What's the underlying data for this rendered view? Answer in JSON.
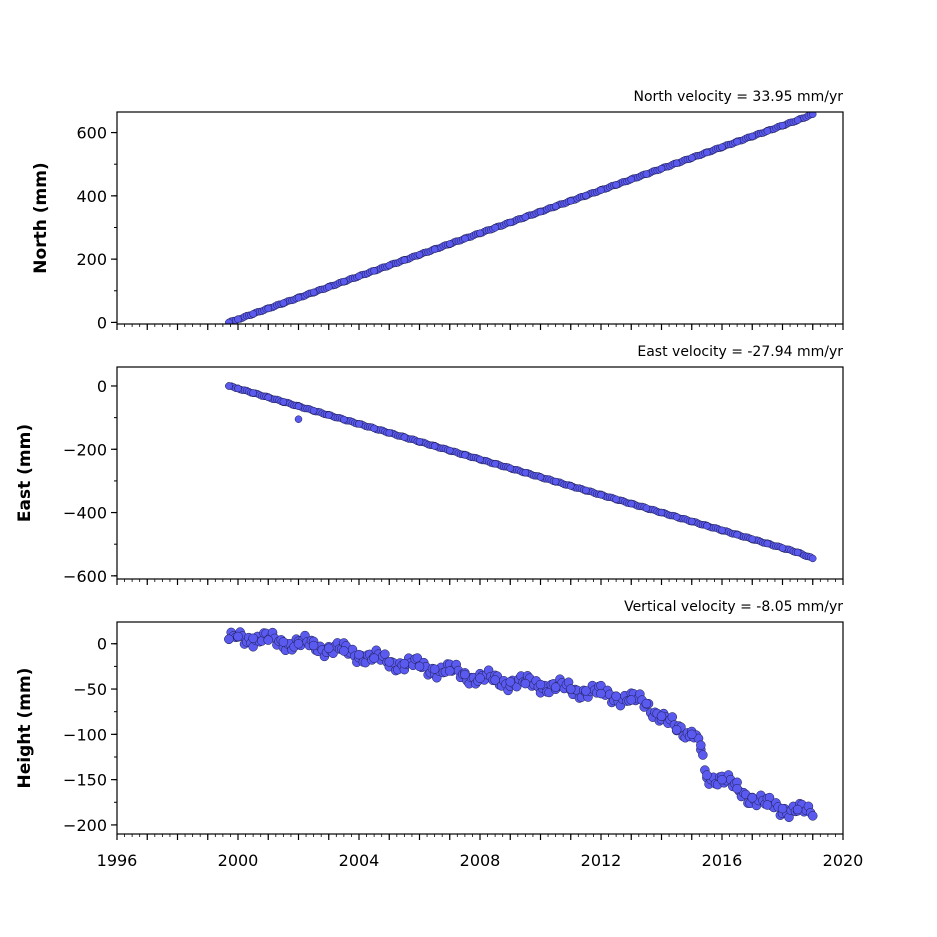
{
  "chart_data": [
    {
      "type": "scatter",
      "title": "North velocity = 33.95 mm/yr",
      "ylabel": "North (mm)",
      "xlim": [
        1996,
        2020
      ],
      "ylim": [
        -5,
        665
      ],
      "yticks": [
        0,
        200,
        400,
        600
      ],
      "ytick_labels": [
        "0",
        "200",
        "400",
        "600"
      ],
      "point_color": "#5a5af0",
      "edge_color": "#1a1a4a",
      "series": [
        {
          "x": [
            1999.7,
            2000.0,
            2000.5,
            2001.0,
            2001.5,
            2002.0,
            2002.5,
            2003.0,
            2003.5,
            2004.0,
            2004.5,
            2005.0,
            2005.5,
            2006.0,
            2006.5,
            2007.0,
            2007.5,
            2008.0,
            2008.5,
            2009.0,
            2009.5,
            2010.0,
            2010.5,
            2011.0,
            2011.5,
            2012.0,
            2012.5,
            2013.0,
            2013.5,
            2014.0,
            2014.5,
            2015.0,
            2015.5,
            2016.0,
            2016.5,
            2017.0,
            2017.5,
            2018.0,
            2018.5,
            2019.0
          ],
          "y": [
            0,
            10,
            27,
            44,
            61,
            78,
            95,
            112,
            129,
            146,
            163,
            180,
            197,
            214,
            231,
            248,
            265,
            282,
            299,
            316,
            333,
            350,
            367,
            384,
            401,
            418,
            435,
            452,
            469,
            486,
            503,
            520,
            537,
            554,
            571,
            588,
            605,
            622,
            639,
            658
          ]
        }
      ]
    },
    {
      "type": "scatter",
      "title": "East velocity = -27.94 mm/yr",
      "ylabel": "East (mm)",
      "xlim": [
        1996,
        2020
      ],
      "ylim": [
        -610,
        60
      ],
      "yticks": [
        0,
        -200,
        -400,
        -600
      ],
      "ytick_labels": [
        "0",
        "−200",
        "−400",
        "−600"
      ],
      "point_color": "#5a5af0",
      "edge_color": "#1a1a4a",
      "series": [
        {
          "x": [
            1999.7,
            2000.0,
            2000.5,
            2001.0,
            2001.5,
            2002.0,
            2002.5,
            2003.0,
            2003.5,
            2004.0,
            2004.5,
            2005.0,
            2005.5,
            2006.0,
            2006.5,
            2007.0,
            2007.5,
            2008.0,
            2008.5,
            2009.0,
            2009.5,
            2010.0,
            2010.5,
            2011.0,
            2011.5,
            2012.0,
            2012.5,
            2013.0,
            2013.5,
            2014.0,
            2014.5,
            2015.0,
            2015.5,
            2016.0,
            2016.5,
            2017.0,
            2017.5,
            2018.0,
            2018.5,
            2019.0,
            2002.0
          ],
          "y": [
            0,
            -8,
            -22,
            -36,
            -50,
            -64,
            -78,
            -92,
            -106,
            -120,
            -134,
            -148,
            -162,
            -176,
            -190,
            -204,
            -218,
            -232,
            -246,
            -260,
            -274,
            -288,
            -302,
            -316,
            -330,
            -344,
            -358,
            -372,
            -386,
            -400,
            -414,
            -428,
            -442,
            -456,
            -470,
            -484,
            -498,
            -512,
            -526,
            -545,
            -105
          ]
        }
      ]
    },
    {
      "type": "scatter",
      "title": "Vertical velocity = -8.05 mm/yr",
      "ylabel": "Height (mm)",
      "xlabel": "",
      "xlim": [
        1996,
        2020
      ],
      "ylim": [
        -210,
        24
      ],
      "yticks": [
        0,
        -50,
        -100,
        -150,
        -200
      ],
      "ytick_labels": [
        "0",
        "−50",
        "−100",
        "−150",
        "−200"
      ],
      "point_color": "#5a5af0",
      "edge_color": "#1a1a4a",
      "series": [
        {
          "x": [
            1999.7,
            2000.0,
            2000.5,
            2001.0,
            2001.5,
            2002.0,
            2002.5,
            2003.0,
            2003.5,
            2004.0,
            2004.5,
            2005.0,
            2005.5,
            2006.0,
            2006.5,
            2007.0,
            2007.5,
            2008.0,
            2008.5,
            2009.0,
            2009.5,
            2010.0,
            2010.5,
            2011.0,
            2011.5,
            2012.0,
            2012.5,
            2013.0,
            2013.5,
            2014.0,
            2014.5,
            2015.0,
            2015.3,
            2015.5,
            2016.0,
            2016.5,
            2017.0,
            2017.5,
            2018.0,
            2018.5,
            2019.0
          ],
          "y": [
            5,
            8,
            6,
            4,
            2,
            0,
            -2,
            -5,
            -8,
            -12,
            -16,
            -20,
            -22,
            -25,
            -28,
            -30,
            -34,
            -38,
            -40,
            -42,
            -44,
            -45,
            -48,
            -50,
            -52,
            -55,
            -58,
            -62,
            -66,
            -80,
            -95,
            -100,
            -112,
            -145,
            -150,
            -160,
            -170,
            -178,
            -182,
            -183,
            -190
          ]
        }
      ]
    }
  ],
  "shared_x_axis": {
    "xticks": [
      1996,
      2000,
      2004,
      2008,
      2012,
      2016,
      2020
    ],
    "xtick_labels": [
      "1996",
      "2000",
      "2004",
      "2008",
      "2012",
      "2016",
      "2020"
    ],
    "minor_tick_step": 0.25
  }
}
